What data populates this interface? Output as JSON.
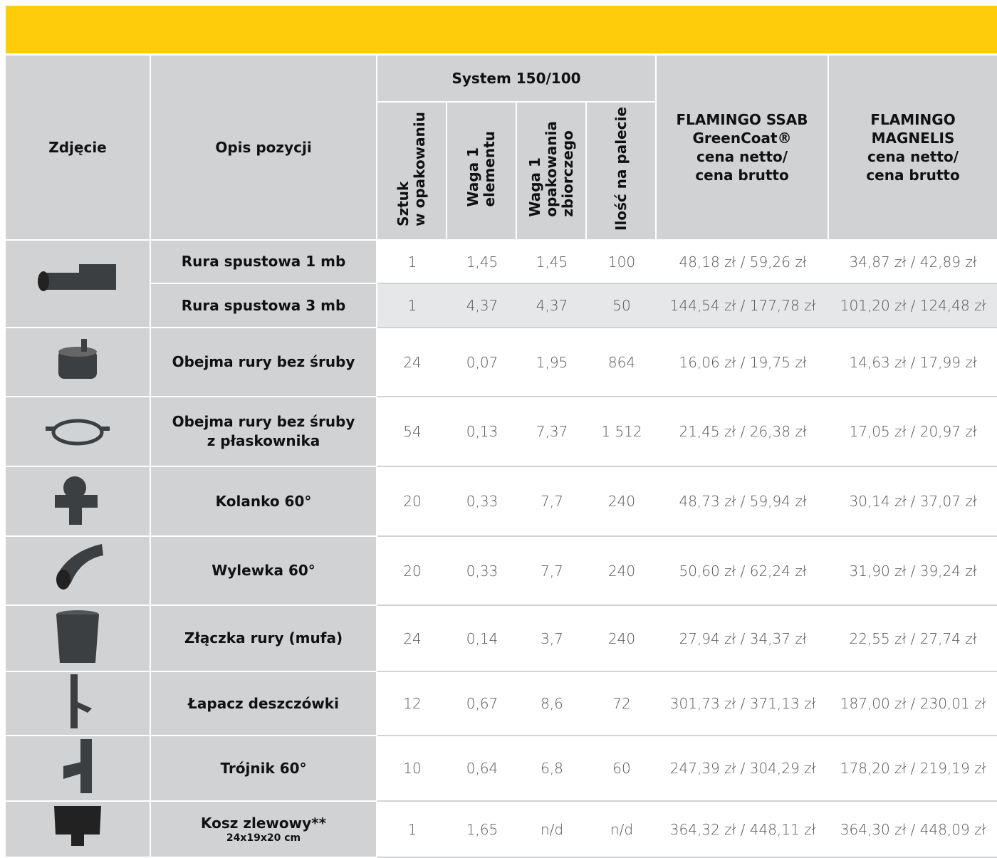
{
  "header": {
    "photo": "Zdjęcie",
    "description": "Opis pozycji",
    "system": "System 150/100",
    "columns": [
      "Sztuk\nw opakowaniu",
      "Waga 1\nelementu",
      "Waga 1\nopakowania\nzbiorczego",
      "Ilość na palecie"
    ],
    "ssab": "FLAMINGO SSAB\nGreenCoat®\ncena netto/\ncena brutto",
    "magnelis": "FLAMINGO\nMAGNELIS\ncena netto/\ncena brutto"
  },
  "rows": [
    {
      "description": "Rura spustowa 1 mb",
      "cells": [
        "1",
        "1,45",
        "1,45",
        "100",
        "48,18 zł / 59,26 zł",
        "34,87 zł / 42,89 zł"
      ]
    },
    {
      "description": "Rura spustowa 3 mb",
      "cells": [
        "1",
        "4,37",
        "4,37",
        "50",
        "144,54 zł / 177,78 zł",
        "101,20 zł / 124,48 zł"
      ]
    },
    {
      "description": "Obejma rury bez śruby",
      "cells": [
        "24",
        "0,07",
        "1,95",
        "864",
        "16,06 zł / 19,75 zł",
        "14,63 zł / 17,99 zł"
      ]
    },
    {
      "description": "Obejma rury bez śruby\nz płaskownika",
      "cells": [
        "54",
        "0,13",
        "7,37",
        "1 512",
        "21,45 zł / 26,38 zł",
        "17,05 zł / 20,97 zł"
      ]
    },
    {
      "description": "Kolanko 60°",
      "cells": [
        "20",
        "0,33",
        "7,7",
        "240",
        "48,73 zł / 59,94 zł",
        "30,14 zł / 37,07 zł"
      ]
    },
    {
      "description": "Wylewka 60°",
      "cells": [
        "20",
        "0,33",
        "7,7",
        "240",
        "50,60 zł / 62,24 zł",
        "31,90 zł / 39,24 zł"
      ]
    },
    {
      "description": "Złączka rury (mufa)",
      "cells": [
        "24",
        "0,14",
        "3,7",
        "240",
        "27,94 zł / 34,37 zł",
        "22,55 zł / 27,74 zł"
      ]
    },
    {
      "description": "Łapacz deszczówki",
      "cells": [
        "12",
        "0,67",
        "8,6",
        "72",
        "301,73 zł / 371,13 zł",
        "187,00 zł / 230,01 zł"
      ]
    },
    {
      "description": "Trójnik 60°",
      "cells": [
        "10",
        "0,64",
        "6,8",
        "60",
        "247,39 zł / 304,29 zł",
        "178,20 zł / 219,19 zł"
      ]
    },
    {
      "description": "Kosz zlewowy**",
      "subtitle": "24x19x20 cm",
      "cells": [
        "1",
        "1,65",
        "n/d",
        "n/d",
        "364,32 zł / 448,11 zł",
        "364,30 zł / 448,09 zł"
      ]
    }
  ]
}
